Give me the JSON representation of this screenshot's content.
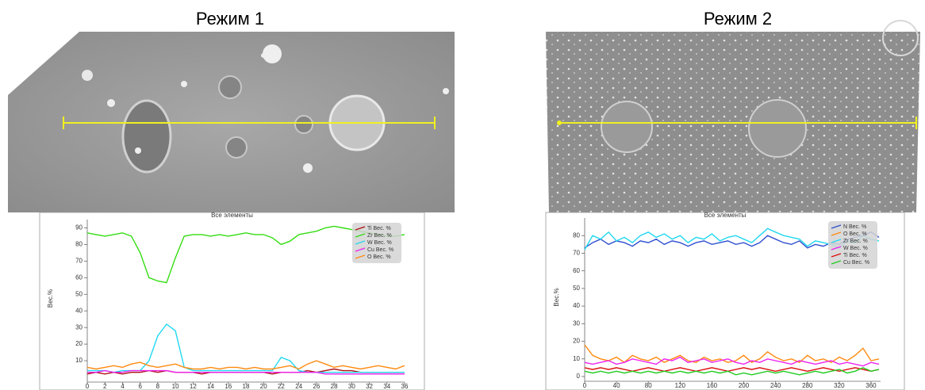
{
  "panels": [
    {
      "title": "Режим 1"
    },
    {
      "title": "Режим 2"
    }
  ],
  "chart_data": [
    {
      "type": "line",
      "title": "Все элементы",
      "y_label": "Вес.%",
      "legend": "upper right",
      "grid": false,
      "x": [
        0,
        1,
        2,
        3,
        4,
        5,
        6,
        7,
        8,
        9,
        10,
        11,
        12,
        13,
        14,
        15,
        16,
        17,
        18,
        19,
        20,
        21,
        22,
        23,
        24,
        25,
        26,
        27,
        28,
        29,
        30,
        31,
        32,
        33,
        34,
        35,
        36
      ],
      "xlim": [
        0,
        36
      ],
      "xticks": [
        0,
        2,
        4,
        6,
        8,
        10,
        12,
        14,
        16,
        18,
        20,
        22,
        24,
        26,
        28,
        30,
        32,
        34,
        36
      ],
      "ylim": [
        0,
        95
      ],
      "yticks": [
        10,
        20,
        30,
        40,
        50,
        60,
        70,
        80,
        90
      ],
      "series": [
        {
          "name": "Ti Вес. %",
          "color": "#b01010",
          "values": [
            2,
            3,
            2,
            3,
            2,
            3,
            3,
            4,
            3,
            4,
            3,
            3,
            3,
            2,
            3,
            3,
            3,
            3,
            3,
            3,
            3,
            2,
            3,
            3,
            3,
            4,
            3,
            4,
            5,
            4,
            4,
            3,
            3,
            3,
            3,
            3,
            3
          ]
        },
        {
          "name": "Zr Вес. %",
          "color": "#33dd11",
          "values": [
            87,
            86,
            85,
            86,
            87,
            85,
            75,
            60,
            58,
            57,
            72,
            85,
            86,
            86,
            85,
            86,
            85,
            86,
            87,
            86,
            86,
            84,
            80,
            82,
            86,
            87,
            88,
            90,
            91,
            90,
            89,
            88,
            87,
            86,
            85,
            85,
            86
          ]
        },
        {
          "name": "W Вес. %",
          "color": "#22d8f0",
          "values": [
            4,
            4,
            4,
            3,
            4,
            4,
            4,
            10,
            25,
            32,
            28,
            6,
            4,
            4,
            4,
            4,
            4,
            4,
            4,
            4,
            4,
            4,
            12,
            10,
            4,
            3,
            3,
            3,
            3,
            3,
            3,
            3,
            3,
            3,
            3,
            3,
            3
          ]
        },
        {
          "name": "Cu Вес. %",
          "color": "#ee22ee",
          "values": [
            3,
            3,
            4,
            3,
            3,
            4,
            4,
            4,
            4,
            4,
            3,
            3,
            3,
            3,
            3,
            3,
            3,
            3,
            3,
            3,
            3,
            3,
            3,
            3,
            3,
            3,
            3,
            2,
            2,
            2,
            2,
            2,
            2,
            2,
            2,
            2,
            2
          ]
        },
        {
          "name": "O Вес. %",
          "color": "#ff8a10",
          "values": [
            6,
            5,
            6,
            7,
            6,
            8,
            9,
            7,
            6,
            7,
            8,
            6,
            5,
            5,
            6,
            5,
            6,
            6,
            5,
            6,
            5,
            5,
            6,
            7,
            5,
            8,
            10,
            8,
            6,
            7,
            6,
            5,
            6,
            7,
            6,
            5,
            7
          ]
        }
      ]
    },
    {
      "type": "line",
      "title": "Все элементы",
      "y_label": "Вес.%",
      "legend": "upper right",
      "grid": false,
      "x": [
        0,
        10,
        20,
        30,
        40,
        50,
        60,
        70,
        80,
        90,
        100,
        110,
        120,
        130,
        140,
        150,
        160,
        170,
        180,
        190,
        200,
        210,
        220,
        230,
        240,
        250,
        260,
        270,
        280,
        290,
        300,
        310,
        320,
        330,
        340,
        350,
        360,
        370
      ],
      "xlim": [
        0,
        372
      ],
      "xticks": [
        0,
        40,
        80,
        120,
        160,
        200,
        240,
        280,
        320,
        360
      ],
      "ylim": [
        0,
        90
      ],
      "yticks": [
        0,
        10,
        20,
        30,
        40,
        50,
        60,
        70,
        80
      ],
      "series": [
        {
          "name": "N Вес. %",
          "color": "#3050d0",
          "values": [
            73,
            76,
            78,
            75,
            77,
            76,
            74,
            77,
            76,
            78,
            75,
            77,
            76,
            74,
            76,
            77,
            75,
            76,
            77,
            75,
            76,
            74,
            76,
            80,
            78,
            76,
            75,
            77,
            73,
            75,
            74,
            76,
            75,
            78,
            79,
            80,
            82,
            79
          ]
        },
        {
          "name": "O Вес. %",
          "color": "#ff8a10",
          "values": [
            18,
            12,
            10,
            9,
            11,
            8,
            12,
            10,
            9,
            11,
            8,
            10,
            12,
            9,
            8,
            11,
            9,
            10,
            8,
            9,
            12,
            8,
            10,
            14,
            11,
            9,
            10,
            8,
            12,
            9,
            10,
            8,
            11,
            9,
            12,
            16,
            9,
            10
          ]
        },
        {
          "name": "Zr Вес. %",
          "color": "#22d8f0",
          "values": [
            72,
            80,
            78,
            82,
            77,
            79,
            76,
            80,
            82,
            79,
            81,
            78,
            80,
            76,
            79,
            78,
            81,
            77,
            79,
            80,
            78,
            76,
            80,
            84,
            82,
            80,
            79,
            78,
            74,
            77,
            76,
            75,
            73,
            77,
            76,
            80,
            78,
            77
          ]
        },
        {
          "name": "W Вес. %",
          "color": "#ee22ee",
          "values": [
            8,
            7,
            8,
            9,
            7,
            8,
            10,
            9,
            8,
            7,
            10,
            9,
            11,
            8,
            9,
            10,
            8,
            9,
            10,
            8,
            7,
            9,
            8,
            10,
            9,
            8,
            7,
            9,
            8,
            7,
            8,
            9,
            7,
            8,
            7,
            6,
            8,
            7
          ]
        },
        {
          "name": "Ti Вес. %",
          "color": "#dd1010",
          "values": [
            5,
            4,
            5,
            4,
            5,
            4,
            3,
            4,
            5,
            4,
            3,
            4,
            5,
            4,
            3,
            4,
            5,
            4,
            3,
            4,
            5,
            4,
            5,
            4,
            3,
            4,
            5,
            4,
            3,
            4,
            5,
            4,
            3,
            4,
            5,
            4,
            3,
            4
          ]
        },
        {
          "name": "Cu Вес. %",
          "color": "#22cc22",
          "values": [
            3,
            2,
            3,
            2,
            3,
            2,
            3,
            2,
            3,
            2,
            3,
            2,
            3,
            2,
            3,
            2,
            3,
            2,
            3,
            1,
            2,
            1,
            2,
            3,
            2,
            3,
            2,
            1,
            2,
            3,
            2,
            3,
            4,
            2,
            3,
            5,
            3,
            4
          ]
        }
      ]
    }
  ]
}
